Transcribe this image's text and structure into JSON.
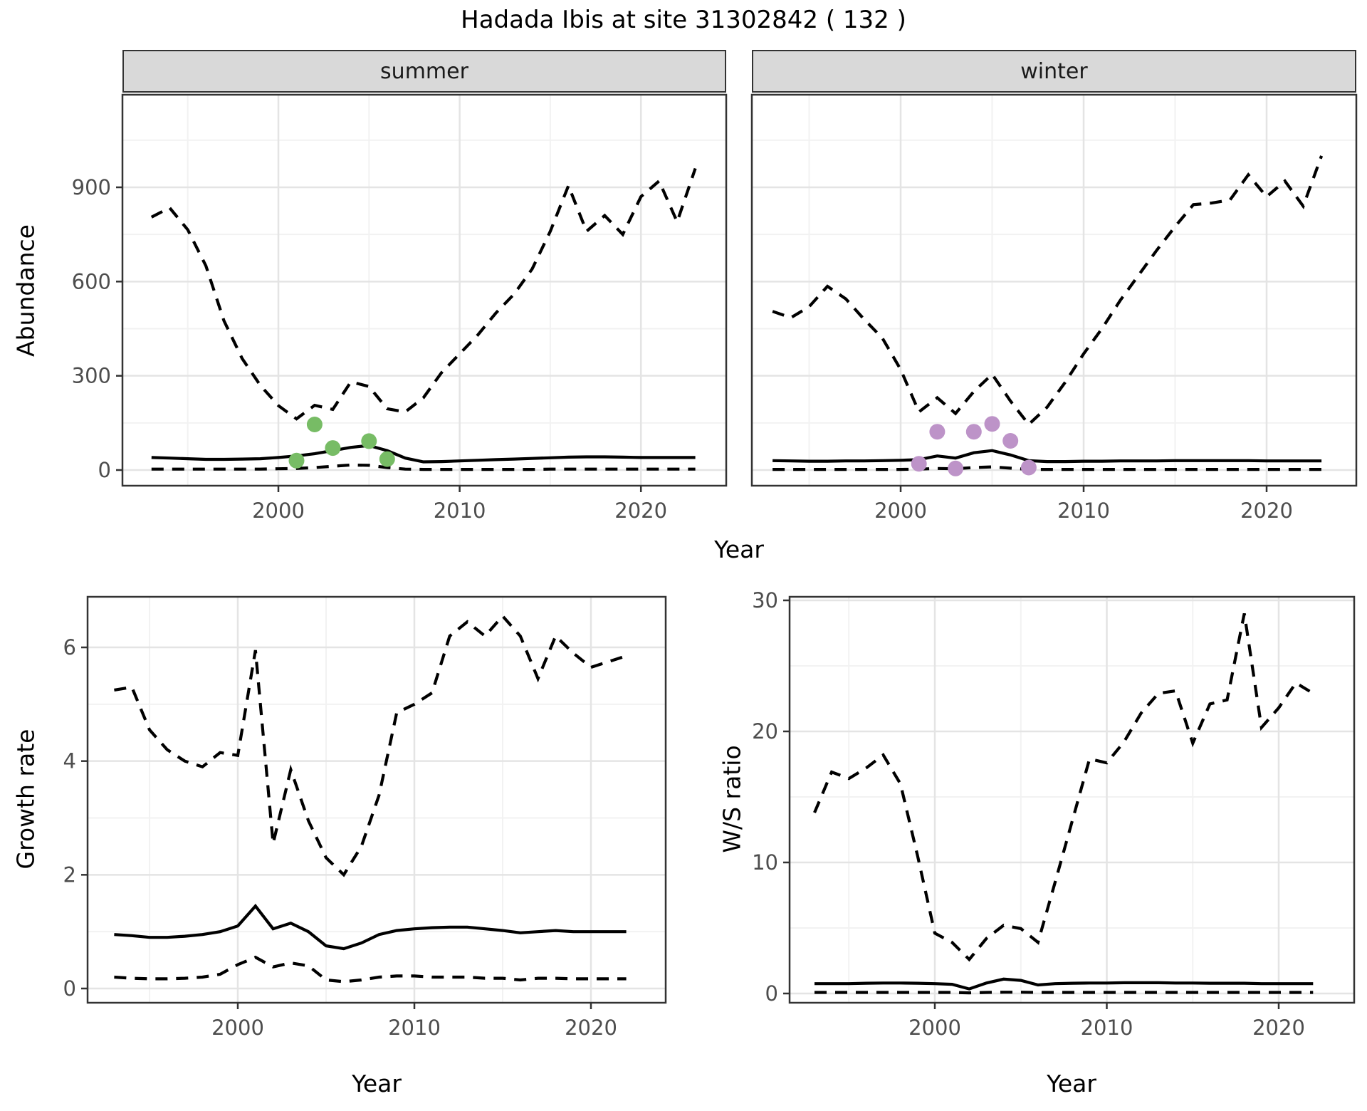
{
  "title": "Hadada Ibis at site 31302842 ( 132 )",
  "facets": {
    "summer": "summer",
    "winter": "winter"
  },
  "axis_titles": {
    "abundance": "Abundance",
    "year": "Year",
    "growth": "Growth rate",
    "ws": "W/S ratio"
  },
  "colors": {
    "line": "#000000",
    "summer_points": "#77BC65",
    "winter_points": "#BD93C8",
    "strip_bg": "#D9D9D9",
    "panel_border": "#333333",
    "grid_major": "#E4E4E4",
    "grid_minor": "#F2F2F2",
    "axis_text": "#4D4D4D",
    "tick_mark": "#333333"
  },
  "chart_data": [
    {
      "id": "abundance_summer",
      "type": "line",
      "facet": "summer",
      "xlabel": "Year",
      "ylabel": "Abundance",
      "xlim": [
        1991.4,
        2024.7
      ],
      "ylim": [
        -50,
        1194
      ],
      "xticks": [
        2000,
        2010,
        2020
      ],
      "yticks": [
        0,
        300,
        600,
        900
      ],
      "xticks_minor": [
        1995,
        2005,
        2015
      ],
      "yticks_minor": [
        150,
        450,
        750,
        1050
      ],
      "x": [
        1993,
        1994,
        1995,
        1996,
        1997,
        1998,
        1999,
        2000,
        2001,
        2002,
        2003,
        2004,
        2005,
        2006,
        2007,
        2008,
        2009,
        2010,
        2011,
        2012,
        2013,
        2014,
        2015,
        2016,
        2017,
        2018,
        2019,
        2020,
        2021,
        2022,
        2023
      ],
      "series": [
        {
          "name": "upper_quantile",
          "style": "dashed",
          "values": [
            805,
            835,
            765,
            650,
            475,
            355,
            270,
            205,
            163,
            206,
            193,
            281,
            266,
            195,
            185,
            230,
            310,
            370,
            430,
            500,
            560,
            640,
            760,
            905,
            760,
            810,
            750,
            870,
            920,
            790,
            960
          ]
        },
        {
          "name": "median",
          "style": "solid",
          "values": [
            40,
            38,
            36,
            34,
            34,
            35,
            36,
            40,
            45,
            52,
            62,
            72,
            78,
            62,
            38,
            26,
            27,
            29,
            31,
            33,
            35,
            37,
            39,
            41,
            42,
            42,
            41,
            40,
            40,
            40,
            40
          ]
        },
        {
          "name": "lower_quantile",
          "style": "dashed",
          "values": [
            3,
            3,
            3,
            3,
            3,
            3,
            3,
            4,
            5,
            8,
            12,
            16,
            15,
            8,
            3,
            2,
            2,
            2,
            2,
            2,
            2,
            2,
            3,
            3,
            3,
            3,
            3,
            3,
            3,
            3,
            3
          ]
        }
      ],
      "points": {
        "name": "observed-summer-counts",
        "color": "#77BC65",
        "x": [
          2001,
          2002,
          2003,
          2005,
          2006
        ],
        "y": [
          30,
          145,
          70,
          92,
          35
        ]
      }
    },
    {
      "id": "abundance_winter",
      "type": "line",
      "facet": "winter",
      "xlabel": "Year",
      "ylabel": "Abundance",
      "xlim": [
        1991.9,
        2024.9
      ],
      "ylim": [
        -50,
        1194
      ],
      "xticks": [
        2000,
        2010,
        2020
      ],
      "yticks": [
        0,
        300,
        600,
        900
      ],
      "xticks_minor": [
        1995,
        2005,
        2015
      ],
      "yticks_minor": [
        150,
        450,
        750,
        1050
      ],
      "x": [
        1993,
        1994,
        1995,
        1996,
        1997,
        1998,
        1999,
        2000,
        2001,
        2002,
        2003,
        2004,
        2005,
        2006,
        2007,
        2008,
        2009,
        2010,
        2011,
        2012,
        2013,
        2014,
        2015,
        2016,
        2017,
        2018,
        2019,
        2020,
        2021,
        2022,
        2023
      ],
      "series": [
        {
          "name": "upper_quantile",
          "style": "dashed",
          "values": [
            505,
            485,
            520,
            585,
            545,
            480,
            420,
            320,
            185,
            230,
            180,
            250,
            305,
            220,
            145,
            200,
            280,
            370,
            450,
            540,
            620,
            700,
            775,
            845,
            850,
            860,
            940,
            870,
            920,
            840,
            1000
          ]
        },
        {
          "name": "median",
          "style": "solid",
          "values": [
            30,
            29,
            28,
            28,
            29,
            29,
            30,
            31,
            33,
            45,
            38,
            55,
            62,
            48,
            30,
            27,
            27,
            28,
            28,
            29,
            29,
            29,
            30,
            30,
            30,
            30,
            30,
            29,
            29,
            29,
            29
          ]
        },
        {
          "name": "lower_quantile",
          "style": "dashed",
          "values": [
            2,
            2,
            2,
            2,
            2,
            2,
            2,
            2,
            3,
            5,
            4,
            8,
            10,
            6,
            2,
            2,
            2,
            2,
            2,
            2,
            2,
            2,
            2,
            2,
            2,
            2,
            2,
            2,
            2,
            2,
            2
          ]
        }
      ],
      "points": {
        "name": "observed-winter-counts",
        "color": "#BD93C8",
        "x": [
          2001,
          2002,
          2003,
          2004,
          2005,
          2006,
          2007
        ],
        "y": [
          20,
          122,
          5,
          122,
          147,
          93,
          8
        ]
      }
    },
    {
      "id": "growth_rate",
      "type": "line",
      "facet": null,
      "xlabel": "Year",
      "ylabel": "Growth rate",
      "xlim": [
        1991.5,
        2024.2
      ],
      "ylim": [
        -0.2,
        6.89
      ],
      "xticks": [
        2000,
        2010,
        2020
      ],
      "yticks": [
        0,
        2,
        4,
        6
      ],
      "xticks_minor": [
        1995,
        2005,
        2015
      ],
      "yticks_minor": [
        1,
        3,
        5
      ],
      "x": [
        1993,
        1994,
        1995,
        1996,
        1997,
        1998,
        1999,
        2000,
        2001,
        2002,
        2003,
        2004,
        2005,
        2006,
        2007,
        2008,
        2009,
        2010,
        2011,
        2012,
        2013,
        2014,
        2015,
        2016,
        2017,
        2018,
        2019,
        2020,
        2021,
        2022
      ],
      "series": [
        {
          "name": "upper_quantile",
          "style": "dashed",
          "values": [
            5.25,
            5.3,
            4.55,
            4.2,
            4.0,
            3.9,
            4.15,
            4.1,
            5.95,
            2.55,
            3.85,
            2.95,
            2.3,
            2.0,
            2.5,
            3.4,
            4.85,
            5.0,
            5.2,
            6.2,
            6.45,
            6.2,
            6.55,
            6.2,
            5.45,
            6.2,
            5.9,
            5.65,
            5.75,
            5.85
          ]
        },
        {
          "name": "median",
          "style": "solid",
          "values": [
            0.95,
            0.93,
            0.9,
            0.9,
            0.92,
            0.95,
            1.0,
            1.1,
            1.45,
            1.05,
            1.15,
            1.0,
            0.75,
            0.7,
            0.8,
            0.95,
            1.02,
            1.05,
            1.07,
            1.08,
            1.08,
            1.05,
            1.02,
            0.98,
            1.0,
            1.02,
            1.0,
            1.0,
            1.0,
            1.0
          ]
        },
        {
          "name": "lower_quantile",
          "style": "dashed",
          "values": [
            0.2,
            0.18,
            0.17,
            0.17,
            0.18,
            0.2,
            0.25,
            0.42,
            0.55,
            0.38,
            0.45,
            0.4,
            0.15,
            0.12,
            0.15,
            0.2,
            0.22,
            0.22,
            0.2,
            0.2,
            0.2,
            0.18,
            0.18,
            0.15,
            0.18,
            0.18,
            0.17,
            0.17,
            0.17,
            0.17
          ]
        }
      ],
      "points": null
    },
    {
      "id": "ws_ratio",
      "type": "line",
      "facet": null,
      "xlabel": "Year",
      "ylabel": "W/S ratio",
      "xlim": [
        1991.6,
        2024.4
      ],
      "ylim": [
        -0.4,
        30.3
      ],
      "xticks": [
        2000,
        2010,
        2020
      ],
      "yticks": [
        0,
        10,
        20,
        30
      ],
      "xticks_minor": [
        1995,
        2005,
        2015
      ],
      "yticks_minor": [
        5,
        15,
        25
      ],
      "x": [
        1993,
        1994,
        1995,
        1996,
        1997,
        1998,
        1999,
        2000,
        2001,
        2002,
        2003,
        2004,
        2005,
        2006,
        2007,
        2008,
        2009,
        2010,
        2011,
        2012,
        2013,
        2014,
        2015,
        2016,
        2017,
        2018,
        2019,
        2020,
        2021,
        2022
      ],
      "series": [
        {
          "name": "upper_quantile",
          "style": "dashed",
          "values": [
            13.8,
            16.9,
            16.4,
            17.2,
            18.2,
            16.0,
            10.5,
            4.6,
            3.9,
            2.6,
            4.2,
            5.2,
            4.95,
            3.9,
            8.5,
            13.2,
            17.9,
            17.6,
            19.2,
            21.4,
            22.9,
            23.1,
            19.1,
            22.1,
            22.4,
            29.0,
            20.3,
            21.8,
            23.7,
            22.9
          ]
        },
        {
          "name": "median",
          "style": "solid",
          "values": [
            0.75,
            0.75,
            0.75,
            0.78,
            0.8,
            0.8,
            0.78,
            0.75,
            0.7,
            0.35,
            0.8,
            1.1,
            1.0,
            0.65,
            0.75,
            0.78,
            0.8,
            0.8,
            0.82,
            0.82,
            0.82,
            0.8,
            0.8,
            0.78,
            0.78,
            0.78,
            0.75,
            0.75,
            0.75,
            0.75
          ]
        },
        {
          "name": "lower_quantile",
          "style": "dashed",
          "values": [
            0.08,
            0.08,
            0.08,
            0.08,
            0.08,
            0.08,
            0.08,
            0.08,
            0.08,
            0.05,
            0.08,
            0.1,
            0.1,
            0.08,
            0.08,
            0.08,
            0.08,
            0.08,
            0.08,
            0.08,
            0.08,
            0.08,
            0.08,
            0.08,
            0.08,
            0.08,
            0.08,
            0.08,
            0.08,
            0.08
          ]
        }
      ],
      "points": null
    }
  ]
}
